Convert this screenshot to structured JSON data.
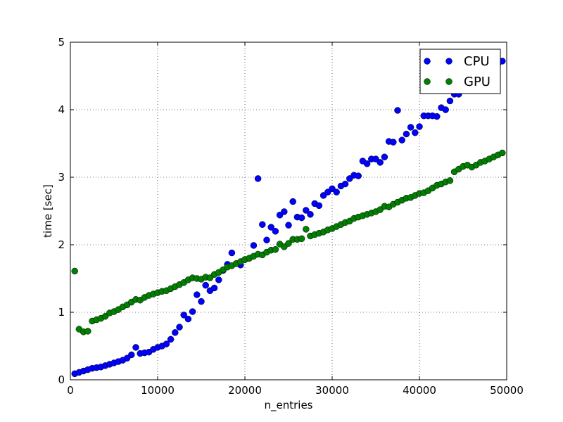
{
  "chart_data": {
    "type": "scatter",
    "title": "",
    "xlabel": "n_entries",
    "ylabel": "time [sec]",
    "xlim": [
      0,
      50000
    ],
    "ylim": [
      0,
      5
    ],
    "xticks": [
      0,
      10000,
      20000,
      30000,
      40000,
      50000
    ],
    "yticks": [
      0,
      1,
      2,
      3,
      4,
      5
    ],
    "xtick_labels": [
      "0",
      "10000",
      "20000",
      "30000",
      "40000",
      "50000"
    ],
    "ytick_labels": [
      "0",
      "1",
      "2",
      "3",
      "4",
      "5"
    ],
    "grid": true,
    "legend_position": "top-right",
    "series": [
      {
        "name": "CPU",
        "color": "#0000ff",
        "x": [
          500,
          1000,
          1500,
          2000,
          2500,
          3000,
          3500,
          4000,
          4500,
          5000,
          5500,
          6000,
          6500,
          7000,
          7500,
          8000,
          8500,
          9000,
          9500,
          10000,
          10500,
          11000,
          11500,
          12000,
          12500,
          13000,
          13500,
          14000,
          14500,
          15000,
          15500,
          16000,
          16500,
          17000,
          17500,
          18000,
          18500,
          19000,
          19500,
          20000,
          20500,
          21000,
          21500,
          22000,
          22500,
          23000,
          23500,
          24000,
          24500,
          25000,
          25500,
          26000,
          26500,
          27000,
          27500,
          28000,
          28500,
          29000,
          29500,
          30000,
          30500,
          31000,
          31500,
          32000,
          32500,
          33000,
          33500,
          34000,
          34500,
          35000,
          35500,
          36000,
          36500,
          37000,
          37500,
          38000,
          38500,
          39000,
          39500,
          40000,
          40500,
          41000,
          41500,
          42000,
          42500,
          43000,
          43500,
          44000,
          44500,
          45000,
          45500,
          46000,
          46500,
          47000,
          47500,
          48000,
          48500,
          49000,
          49500
        ],
        "y": [
          0.09,
          0.11,
          0.13,
          0.15,
          0.17,
          0.18,
          0.19,
          0.21,
          0.23,
          0.25,
          0.27,
          0.29,
          0.32,
          0.37,
          0.48,
          0.39,
          0.4,
          0.41,
          0.45,
          0.48,
          0.5,
          0.53,
          0.6,
          0.7,
          0.78,
          0.96,
          0.9,
          1.01,
          1.26,
          1.16,
          1.4,
          1.32,
          1.36,
          1.48,
          1.62,
          1.71,
          1.88,
          1.72,
          1.7,
          1.78,
          1.8,
          1.99,
          2.98,
          2.3,
          2.07,
          2.26,
          2.2,
          2.44,
          2.49,
          2.29,
          2.64,
          2.41,
          2.4,
          2.51,
          2.45,
          2.61,
          2.58,
          2.73,
          2.78,
          2.83,
          2.78,
          2.87,
          2.9,
          2.98,
          3.03,
          3.02,
          3.24,
          3.2,
          3.27,
          3.27,
          3.22,
          3.3,
          3.53,
          3.52,
          3.99,
          3.55,
          3.64,
          3.74,
          3.66,
          3.75,
          3.91,
          3.91,
          3.91,
          3.9,
          4.03,
          4.0,
          4.13,
          4.23,
          4.23,
          4.33,
          4.39,
          4.45,
          4.5,
          4.55,
          4.58,
          4.62,
          4.65,
          4.68,
          4.72
        ]
      },
      {
        "name": "GPU",
        "color": "#007f00",
        "x": [
          500,
          1000,
          1500,
          2000,
          2500,
          3000,
          3500,
          4000,
          4500,
          5000,
          5500,
          6000,
          6500,
          7000,
          7500,
          8000,
          8500,
          9000,
          9500,
          10000,
          10500,
          11000,
          11500,
          12000,
          12500,
          13000,
          13500,
          14000,
          14500,
          15000,
          15500,
          16000,
          16500,
          17000,
          17500,
          18000,
          18500,
          19000,
          19500,
          20000,
          20500,
          21000,
          21500,
          22000,
          22500,
          23000,
          23500,
          24000,
          24500,
          25000,
          25500,
          26000,
          26500,
          27000,
          27500,
          28000,
          28500,
          29000,
          29500,
          30000,
          30500,
          31000,
          31500,
          32000,
          32500,
          33000,
          33500,
          34000,
          34500,
          35000,
          35500,
          36000,
          36500,
          37000,
          37500,
          38000,
          38500,
          39000,
          39500,
          40000,
          40500,
          41000,
          41500,
          42000,
          42500,
          43000,
          43500,
          44000,
          44500,
          45000,
          45500,
          46000,
          46500,
          47000,
          47500,
          48000,
          48500,
          49000,
          49500
        ],
        "y": [
          1.61,
          0.75,
          0.71,
          0.72,
          0.87,
          0.89,
          0.91,
          0.94,
          0.99,
          1.01,
          1.04,
          1.08,
          1.11,
          1.15,
          1.19,
          1.18,
          1.22,
          1.25,
          1.27,
          1.29,
          1.31,
          1.32,
          1.35,
          1.38,
          1.41,
          1.44,
          1.48,
          1.51,
          1.5,
          1.49,
          1.52,
          1.51,
          1.56,
          1.59,
          1.63,
          1.67,
          1.69,
          1.72,
          1.75,
          1.78,
          1.8,
          1.83,
          1.86,
          1.85,
          1.89,
          1.92,
          1.93,
          2.01,
          1.97,
          2.02,
          2.08,
          2.08,
          2.09,
          2.23,
          2.13,
          2.15,
          2.17,
          2.19,
          2.22,
          2.24,
          2.27,
          2.3,
          2.33,
          2.35,
          2.39,
          2.41,
          2.43,
          2.45,
          2.47,
          2.49,
          2.52,
          2.57,
          2.56,
          2.6,
          2.63,
          2.66,
          2.69,
          2.7,
          2.73,
          2.76,
          2.77,
          2.8,
          2.84,
          2.88,
          2.9,
          2.93,
          2.95,
          3.08,
          3.12,
          3.16,
          3.18,
          3.15,
          3.18,
          3.22,
          3.24,
          3.27,
          3.3,
          3.33,
          3.36
        ]
      }
    ]
  }
}
